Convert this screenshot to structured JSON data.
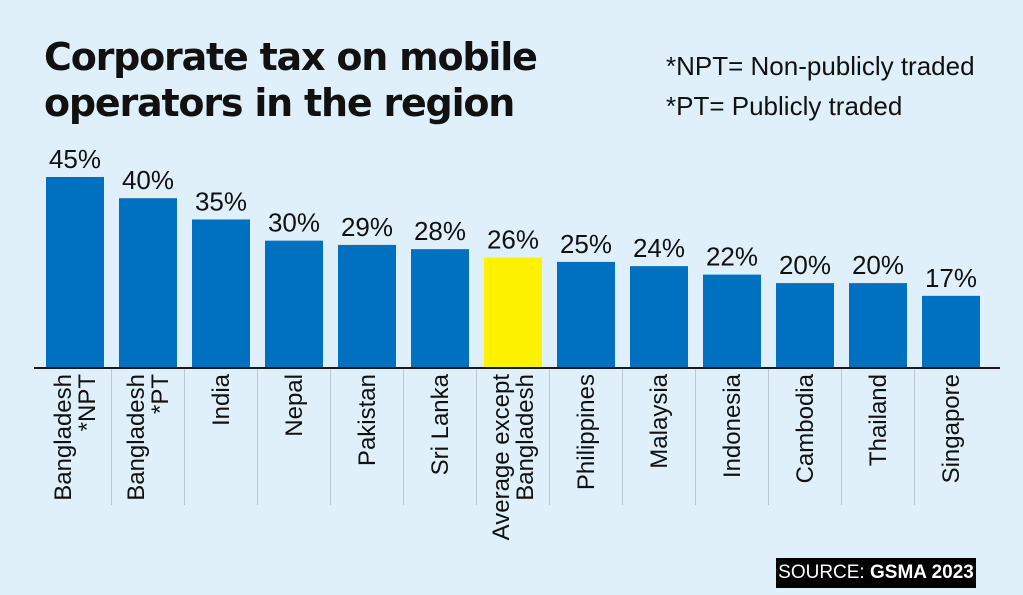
{
  "title_lines": [
    "Corporate tax on mobile",
    "operators in the region"
  ],
  "notes": [
    "*NPT= Non-publicly traded",
    "*PT= Publicly traded"
  ],
  "source": {
    "label": "SOURCE:",
    "value": "GSMA 2023"
  },
  "colors": {
    "bar": "#0070c0",
    "highlight": "#fff200",
    "background": "#dff0fb",
    "axis": "#1a1a1a"
  },
  "chart_data": {
    "type": "bar",
    "title": "Corporate tax on mobile operators in the region",
    "xlabel": "",
    "ylabel": "",
    "ylim": [
      0,
      45
    ],
    "unit": "%",
    "categories": [
      [
        "Bangladesh",
        "*NPT"
      ],
      [
        "Bangladesh",
        "*PT"
      ],
      [
        "India"
      ],
      [
        "Nepal"
      ],
      [
        "Pakistan"
      ],
      [
        "Sri Lanka"
      ],
      [
        "Average except",
        "Bangladesh"
      ],
      [
        "Philippines"
      ],
      [
        "Malaysia"
      ],
      [
        "Indonesia"
      ],
      [
        "Cambodia"
      ],
      [
        "Thailand"
      ],
      [
        "Singapore"
      ]
    ],
    "values": [
      45,
      40,
      35,
      30,
      29,
      28,
      26,
      25,
      24,
      22,
      20,
      20,
      17
    ],
    "value_labels": [
      "45%",
      "40%",
      "35%",
      "30%",
      "29%",
      "28%",
      "26%",
      "25%",
      "24%",
      "22%",
      "20%",
      "20%",
      "17%"
    ],
    "highlight_index": 6
  }
}
